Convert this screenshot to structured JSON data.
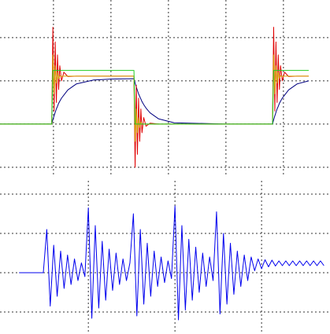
{
  "chart_data": [
    {
      "type": "line",
      "grid": true,
      "xlim": [
        0.07,
        5.81
      ],
      "ylim": [
        -1.22,
        2.87
      ],
      "xticks": [
        1,
        2,
        3,
        4,
        5
      ],
      "yticks": [
        -1,
        0,
        1,
        2
      ],
      "x": [
        0.07,
        0.97,
        0.99,
        1.01,
        1.03,
        1.05,
        1.07,
        1.09,
        1.11,
        1.14,
        1.18,
        1.25,
        1.4,
        1.7,
        2.0,
        2.4,
        2.42,
        2.44,
        2.46,
        2.48,
        2.5,
        2.52,
        2.54,
        2.57,
        2.61,
        2.68,
        2.83,
        3.1,
        4.0,
        4.81,
        4.83,
        4.85,
        4.87,
        4.89,
        4.91,
        4.93,
        4.95,
        4.98,
        5.02,
        5.09,
        5.24,
        5.44
      ],
      "series": [
        {
          "color": "#000080",
          "values": [
            0,
            0,
            0.1,
            0.19,
            0.27,
            0.35,
            0.41,
            0.48,
            0.53,
            0.6,
            0.67,
            0.79,
            0.93,
            1.02,
            1.04,
            1.05,
            0.95,
            0.86,
            0.78,
            0.7,
            0.64,
            0.58,
            0.52,
            0.45,
            0.37,
            0.26,
            0.12,
            0.03,
            0,
            0,
            0.1,
            0.19,
            0.27,
            0.35,
            0.41,
            0.48,
            0.53,
            0.6,
            0.67,
            0.79,
            0.93,
            1.0
          ]
        },
        {
          "color": "#e00000",
          "values": [
            0,
            0,
            2.24,
            0.3,
            1.9,
            0.5,
            1.6,
            0.8,
            1.35,
            1.0,
            1.2,
            1.1,
            1.11,
            1.11,
            1.11,
            1.11,
            -1.0,
            0.9,
            -0.7,
            0.6,
            -0.4,
            0.35,
            -0.2,
            0.15,
            -0.05,
            0.02,
            0,
            0,
            0,
            0,
            2.24,
            0.3,
            1.9,
            0.5,
            1.6,
            0.8,
            1.35,
            1.0,
            1.2,
            1.1,
            1.11,
            1.11
          ]
        },
        {
          "color": "#d8a400",
          "values": [
            0,
            0,
            1.6,
            0.7,
            1.35,
            0.95,
            1.2,
            1.05,
            1.12,
            1.1,
            1.11,
            1.11,
            1.11,
            1.11,
            1.11,
            1.11,
            -0.4,
            0.35,
            -0.2,
            0.15,
            -0.08,
            0.05,
            0,
            0,
            0,
            0,
            0,
            0,
            0,
            0,
            1.6,
            0.7,
            1.35,
            0.95,
            1.2,
            1.05,
            1.12,
            1.1,
            1.11,
            1.11,
            1.11,
            1.11
          ]
        },
        {
          "color": "#22cc22",
          "values": [
            0,
            0,
            1.24,
            1.24,
            1.24,
            1.24,
            1.24,
            1.24,
            1.24,
            1.24,
            1.24,
            1.24,
            1.24,
            1.24,
            1.24,
            1.24,
            0,
            0,
            0,
            0,
            0,
            0,
            0,
            0,
            0,
            0,
            0,
            0,
            0,
            0,
            1.24,
            1.24,
            1.24,
            1.24,
            1.24,
            1.24,
            1.24,
            1.24,
            1.24,
            1.24,
            1.24,
            1.24
          ]
        }
      ]
    },
    {
      "type": "line",
      "grid": true,
      "xlim": [
        -0.02,
        3.79
      ],
      "ylim": [
        -1.56,
        2.34
      ],
      "xticks": [
        1,
        2,
        3
      ],
      "yticks": [
        -1,
        0,
        1,
        2
      ],
      "x": [
        0.2,
        0.24,
        0.28,
        0.32,
        0.36,
        0.4,
        0.44,
        0.48,
        0.52,
        0.56,
        0.6,
        0.64,
        0.68,
        0.72,
        0.76,
        0.8,
        0.84,
        0.88,
        0.92,
        0.96,
        1.0,
        1.04,
        1.08,
        1.12,
        1.16,
        1.2,
        1.24,
        1.28,
        1.32,
        1.36,
        1.4,
        1.44,
        1.48,
        1.52,
        1.56,
        1.6,
        1.64,
        1.68,
        1.72,
        1.76,
        1.8,
        1.84,
        1.88,
        1.92,
        1.96,
        2.0,
        2.04,
        2.08,
        2.12,
        2.16,
        2.2,
        2.24,
        2.28,
        2.32,
        2.36,
        2.4,
        2.44,
        2.48,
        2.52,
        2.56,
        2.6,
        2.64,
        2.68,
        2.72,
        2.76,
        2.8,
        2.84,
        2.88,
        2.92,
        2.96,
        3.0,
        3.04,
        3.08,
        3.12,
        3.16,
        3.2,
        3.24,
        3.28,
        3.32,
        3.36,
        3.4,
        3.44,
        3.48,
        3.52,
        3.56,
        3.6,
        3.64,
        3.68,
        3.72
      ],
      "series": [
        {
          "color": "#0000ee",
          "values": [
            0,
            0,
            0,
            0,
            0,
            0,
            0,
            0,
            1.1,
            -0.85,
            0.7,
            -0.6,
            0.55,
            -0.4,
            0.45,
            -0.3,
            0.35,
            -0.2,
            0.25,
            -0.1,
            1.65,
            -1.16,
            1.2,
            -0.9,
            0.8,
            -0.7,
            0.6,
            -0.45,
            0.5,
            -0.3,
            0.35,
            -0.2,
            0.25,
            1.5,
            -1.1,
            1.1,
            -0.8,
            0.75,
            -0.6,
            0.55,
            -0.35,
            0.4,
            -0.25,
            0.3,
            -0.15,
            1.7,
            -1.2,
            1.2,
            -0.95,
            0.85,
            -0.7,
            0.65,
            -0.5,
            0.5,
            -0.35,
            0.4,
            -0.2,
            1.55,
            -1.05,
            1.0,
            -0.8,
            0.75,
            -0.55,
            0.55,
            -0.35,
            0.45,
            -0.2,
            0.4,
            0.05,
            0.35,
            0.1,
            0.33,
            0.15,
            0.32,
            0.17,
            0.3,
            0.18,
            0.3,
            0.18,
            0.3,
            0.18,
            0.3,
            0.18,
            0.3,
            0.18,
            0.3,
            0.18,
            0.3,
            0.18
          ]
        }
      ]
    }
  ]
}
